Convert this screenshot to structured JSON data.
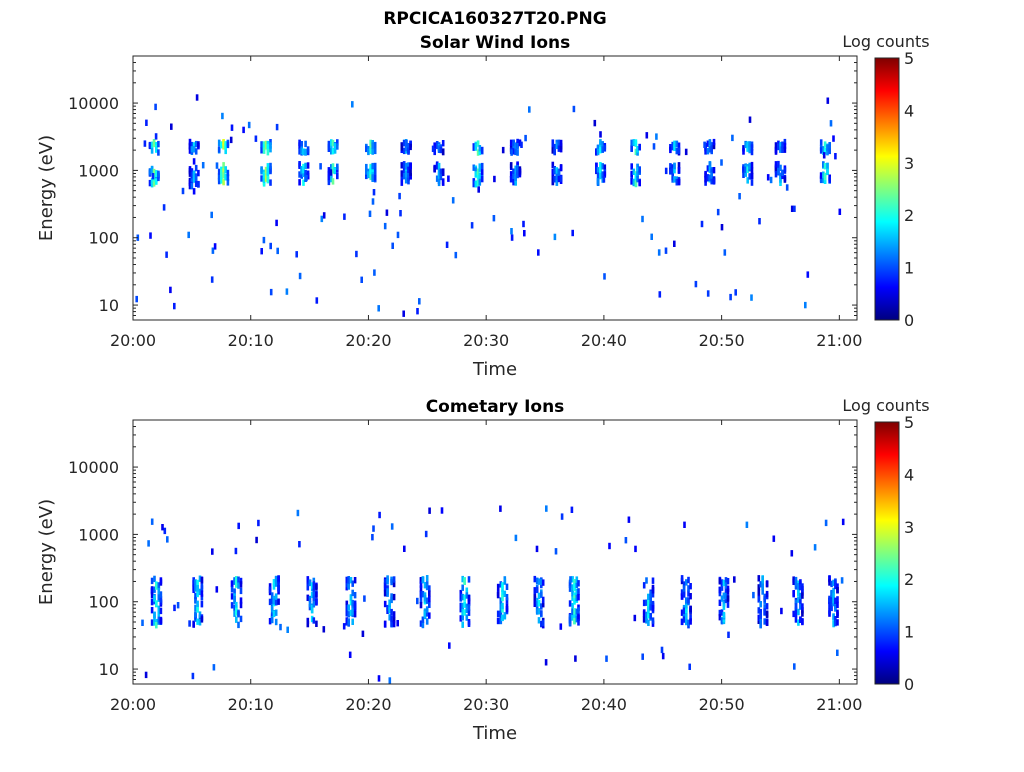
{
  "figure_title": "RPCICA160327T20.PNG",
  "colormap": [
    "#00007f",
    "#0000ff",
    "#007fff",
    "#00ffff",
    "#7fff7f",
    "#ffff00",
    "#ff7f00",
    "#ff0000",
    "#7f0000"
  ],
  "chart_data": [
    {
      "type": "heatmap",
      "title": "Solar Wind Ions",
      "xlabel": "Time",
      "ylabel": "Energy (eV)",
      "x_ticks": [
        "20:00",
        "20:10",
        "20:20",
        "20:30",
        "20:40",
        "20:50",
        "21:00"
      ],
      "x_range_minutes": [
        0,
        61.5
      ],
      "y_scale": "log",
      "y_range": [
        6,
        50000
      ],
      "y_ticks": [
        "10",
        "100",
        "1000",
        "10000"
      ],
      "y_tick_values": [
        10,
        100,
        1000,
        10000
      ],
      "colorbar_label": "Log counts",
      "colorbar_range": [
        0,
        5
      ],
      "colorbar_ticks": [
        "0",
        "1",
        "2",
        "3",
        "4",
        "5"
      ],
      "bursts": [
        {
          "t": 1.8,
          "e_center": 800,
          "peak": 2.6
        },
        {
          "t": 5.2,
          "e_center": 800,
          "peak": 1.8
        },
        {
          "t": 7.7,
          "e_center": 900,
          "peak": 3.0
        },
        {
          "t": 11.3,
          "e_center": 850,
          "peak": 2.9
        },
        {
          "t": 14.5,
          "e_center": 900,
          "peak": 2.0
        },
        {
          "t": 17.0,
          "e_center": 850,
          "peak": 2.4
        },
        {
          "t": 20.2,
          "e_center": 900,
          "peak": 2.4
        },
        {
          "t": 23.2,
          "e_center": 900,
          "peak": 1.7
        },
        {
          "t": 26.0,
          "e_center": 900,
          "peak": 1.6
        },
        {
          "t": 29.3,
          "e_center": 850,
          "peak": 2.4
        },
        {
          "t": 32.5,
          "e_center": 900,
          "peak": 1.6
        },
        {
          "t": 36.0,
          "e_center": 900,
          "peak": 1.7
        },
        {
          "t": 39.7,
          "e_center": 900,
          "peak": 2.0
        },
        {
          "t": 42.7,
          "e_center": 850,
          "peak": 2.3
        },
        {
          "t": 46.0,
          "e_center": 900,
          "peak": 1.8
        },
        {
          "t": 49.0,
          "e_center": 900,
          "peak": 1.7
        },
        {
          "t": 52.2,
          "e_center": 900,
          "peak": 2.0
        },
        {
          "t": 55.0,
          "e_center": 900,
          "peak": 1.7
        },
        {
          "t": 58.8,
          "e_center": 900,
          "peak": 2.3
        }
      ]
    },
    {
      "type": "heatmap",
      "title": "Cometary Ions",
      "xlabel": "Time",
      "ylabel": "Energy (eV)",
      "x_ticks": [
        "20:00",
        "20:10",
        "20:20",
        "20:30",
        "20:40",
        "20:50",
        "21:00"
      ],
      "x_range_minutes": [
        0,
        61.5
      ],
      "y_scale": "log",
      "y_range": [
        6,
        50000
      ],
      "y_ticks": [
        "10",
        "100",
        "1000",
        "10000"
      ],
      "y_tick_values": [
        10,
        100,
        1000,
        10000
      ],
      "colorbar_label": "Log counts",
      "colorbar_range": [
        0,
        5
      ],
      "colorbar_ticks": [
        "0",
        "1",
        "2",
        "3",
        "4",
        "5"
      ],
      "bursts": [
        {
          "t": 2.0,
          "e_center": 100,
          "peak": 2.2
        },
        {
          "t": 5.5,
          "e_center": 100,
          "peak": 2.0
        },
        {
          "t": 8.8,
          "e_center": 100,
          "peak": 2.1
        },
        {
          "t": 12.0,
          "e_center": 100,
          "peak": 2.0
        },
        {
          "t": 15.2,
          "e_center": 100,
          "peak": 1.8
        },
        {
          "t": 18.5,
          "e_center": 100,
          "peak": 2.1
        },
        {
          "t": 21.8,
          "e_center": 100,
          "peak": 1.8
        },
        {
          "t": 24.8,
          "e_center": 100,
          "peak": 2.0
        },
        {
          "t": 28.2,
          "e_center": 100,
          "peak": 2.2
        },
        {
          "t": 31.4,
          "e_center": 100,
          "peak": 2.1
        },
        {
          "t": 34.5,
          "e_center": 100,
          "peak": 1.9
        },
        {
          "t": 37.5,
          "e_center": 100,
          "peak": 2.3
        },
        {
          "t": 43.8,
          "e_center": 100,
          "peak": 2.0
        },
        {
          "t": 47.0,
          "e_center": 100,
          "peak": 1.8
        },
        {
          "t": 50.2,
          "e_center": 100,
          "peak": 1.8
        },
        {
          "t": 53.5,
          "e_center": 100,
          "peak": 1.8
        },
        {
          "t": 56.5,
          "e_center": 100,
          "peak": 1.7
        },
        {
          "t": 59.5,
          "e_center": 100,
          "peak": 1.8
        }
      ]
    }
  ]
}
